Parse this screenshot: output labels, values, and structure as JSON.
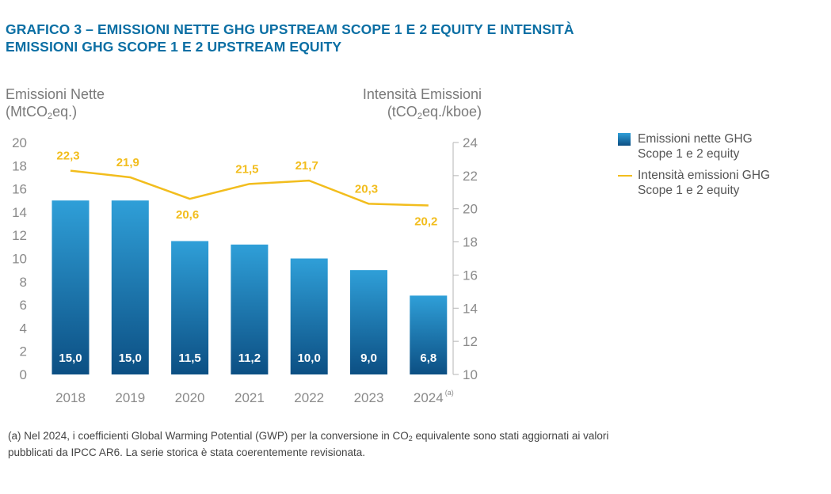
{
  "title_line1": "GRAFICO 3 – EMISSIONI NETTE GHG UPSTREAM SCOPE 1 E 2 EQUITY E INTENSITÀ",
  "title_line2": "EMISSIONI GHG SCOPE 1 E 2 UPSTREAM EQUITY",
  "left_axis": {
    "line1": "Emissioni Nette",
    "line2_pre": "(MtCO",
    "line2_sub": "2",
    "line2_post": "eq.)"
  },
  "right_axis": {
    "line1": "Intensità Emissioni",
    "line2_pre": "(tCO",
    "line2_sub": "2",
    "line2_post": "eq./kboe)"
  },
  "legend": {
    "bar_label_line1": "Emissioni nette GHG",
    "bar_label_line2": "Scope 1 e 2 equity",
    "line_label_line1": "Intensità emissioni GHG",
    "line_label_line2": "Scope 1 e 2 equity"
  },
  "footnote": {
    "line1_pre": "(a) Nel 2024, i coefficienti Global Warming Potential (GWP) per la conversione in CO",
    "line1_sub": "2",
    "line1_post": " equivalente sono stati aggiornati ai valori",
    "line2": "pubblicati da IPCC AR6. La serie storica è stata coerentemente revisionata."
  },
  "chart_data": {
    "type": "bar+line",
    "categories": [
      "2018",
      "2019",
      "2020",
      "2021",
      "2022",
      "2023",
      "2024"
    ],
    "category_superscripts": [
      "",
      "",
      "",
      "",
      "",
      "",
      "(a)"
    ],
    "bar_series": {
      "name": "Emissioni nette GHG Scope 1 e 2 equity",
      "values": [
        15.0,
        15.0,
        11.5,
        11.2,
        10.0,
        9.0,
        6.8
      ],
      "labels": [
        "15,0",
        "15,0",
        "11,5",
        "11,2",
        "10,0",
        "9,0",
        "6,8"
      ],
      "color_top": "#2f9fd8",
      "color_bottom": "#0c4f83"
    },
    "line_series": {
      "name": "Intensità emissioni GHG Scope 1 e 2 equity",
      "values": [
        22.3,
        21.9,
        20.6,
        21.5,
        21.7,
        20.3,
        20.2
      ],
      "labels": [
        "22,3",
        "21,9",
        "20,6",
        "21,5",
        "21,7",
        "20,3",
        "20,2"
      ],
      "color": "#f2bd1d"
    },
    "y_left": {
      "min": 0,
      "max": 20,
      "ticks": [
        "0",
        "2",
        "4",
        "6",
        "8",
        "10",
        "12",
        "14",
        "16",
        "18",
        "20"
      ]
    },
    "y_right": {
      "min": 10,
      "max": 24,
      "ticks": [
        "10",
        "12",
        "14",
        "16",
        "18",
        "20",
        "22",
        "24"
      ]
    },
    "grid": false,
    "legend_position": "right"
  }
}
